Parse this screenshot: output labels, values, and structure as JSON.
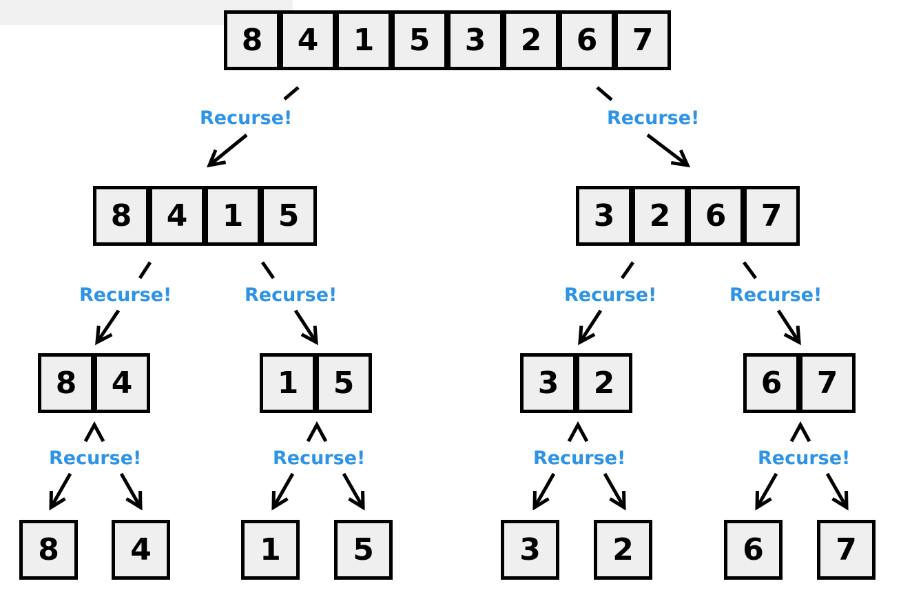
{
  "diagram": {
    "label_text": "Recurse!",
    "colors": {
      "label": "#2e93e6",
      "cell_fill": "#efefef",
      "border": "#000000",
      "arrow": "#000000"
    },
    "levels": [
      {
        "name": "level-0",
        "arrays": [
          {
            "values": [
              "8",
              "4",
              "1",
              "5",
              "3",
              "2",
              "6",
              "7"
            ]
          }
        ]
      },
      {
        "name": "level-1",
        "arrays": [
          {
            "values": [
              "8",
              "4",
              "1",
              "5"
            ]
          },
          {
            "values": [
              "3",
              "2",
              "6",
              "7"
            ]
          }
        ]
      },
      {
        "name": "level-2",
        "arrays": [
          {
            "values": [
              "8",
              "4"
            ]
          },
          {
            "values": [
              "1",
              "5"
            ]
          },
          {
            "values": [
              "3",
              "2"
            ]
          },
          {
            "values": [
              "6",
              "7"
            ]
          }
        ]
      },
      {
        "name": "level-3",
        "arrays": [
          {
            "values": [
              "8"
            ]
          },
          {
            "values": [
              "4"
            ]
          },
          {
            "values": [
              "1"
            ]
          },
          {
            "values": [
              "5"
            ]
          },
          {
            "values": [
              "3"
            ]
          },
          {
            "values": [
              "2"
            ]
          },
          {
            "values": [
              "6"
            ]
          },
          {
            "values": [
              "7"
            ]
          }
        ]
      }
    ]
  }
}
